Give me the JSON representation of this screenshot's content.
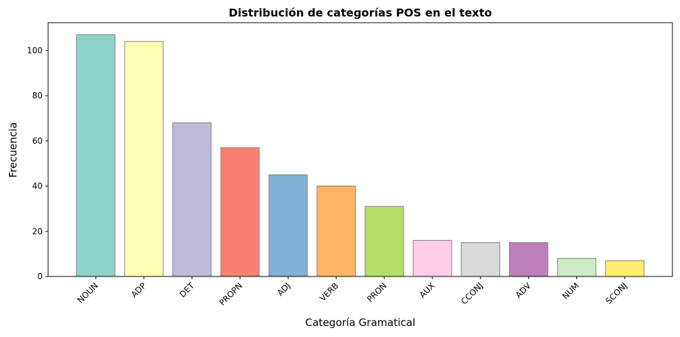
{
  "chart_data": {
    "type": "bar",
    "title": "Distribución de categorías POS en el texto",
    "xlabel": "Categoría Gramatical",
    "ylabel": "Frecuencia",
    "categories": [
      "NOUN",
      "ADP",
      "DET",
      "PROPN",
      "ADJ",
      "VERB",
      "PRON",
      "AUX",
      "CCONJ",
      "ADV",
      "NUM",
      "SCONJ"
    ],
    "values": [
      107,
      104,
      68,
      57,
      45,
      40,
      31,
      16,
      15,
      15,
      8,
      7
    ],
    "colors": [
      "#8dd3c7",
      "#ffffb3",
      "#bebada",
      "#fb8072",
      "#80b1d3",
      "#fdb462",
      "#b3de69",
      "#fccde5",
      "#d9d9d9",
      "#bc80bd",
      "#ccebc5",
      "#ffed6f"
    ],
    "ylim": [
      0,
      112.3
    ],
    "yticks": [
      0,
      20,
      40,
      60,
      80,
      100
    ],
    "grid": false
  }
}
